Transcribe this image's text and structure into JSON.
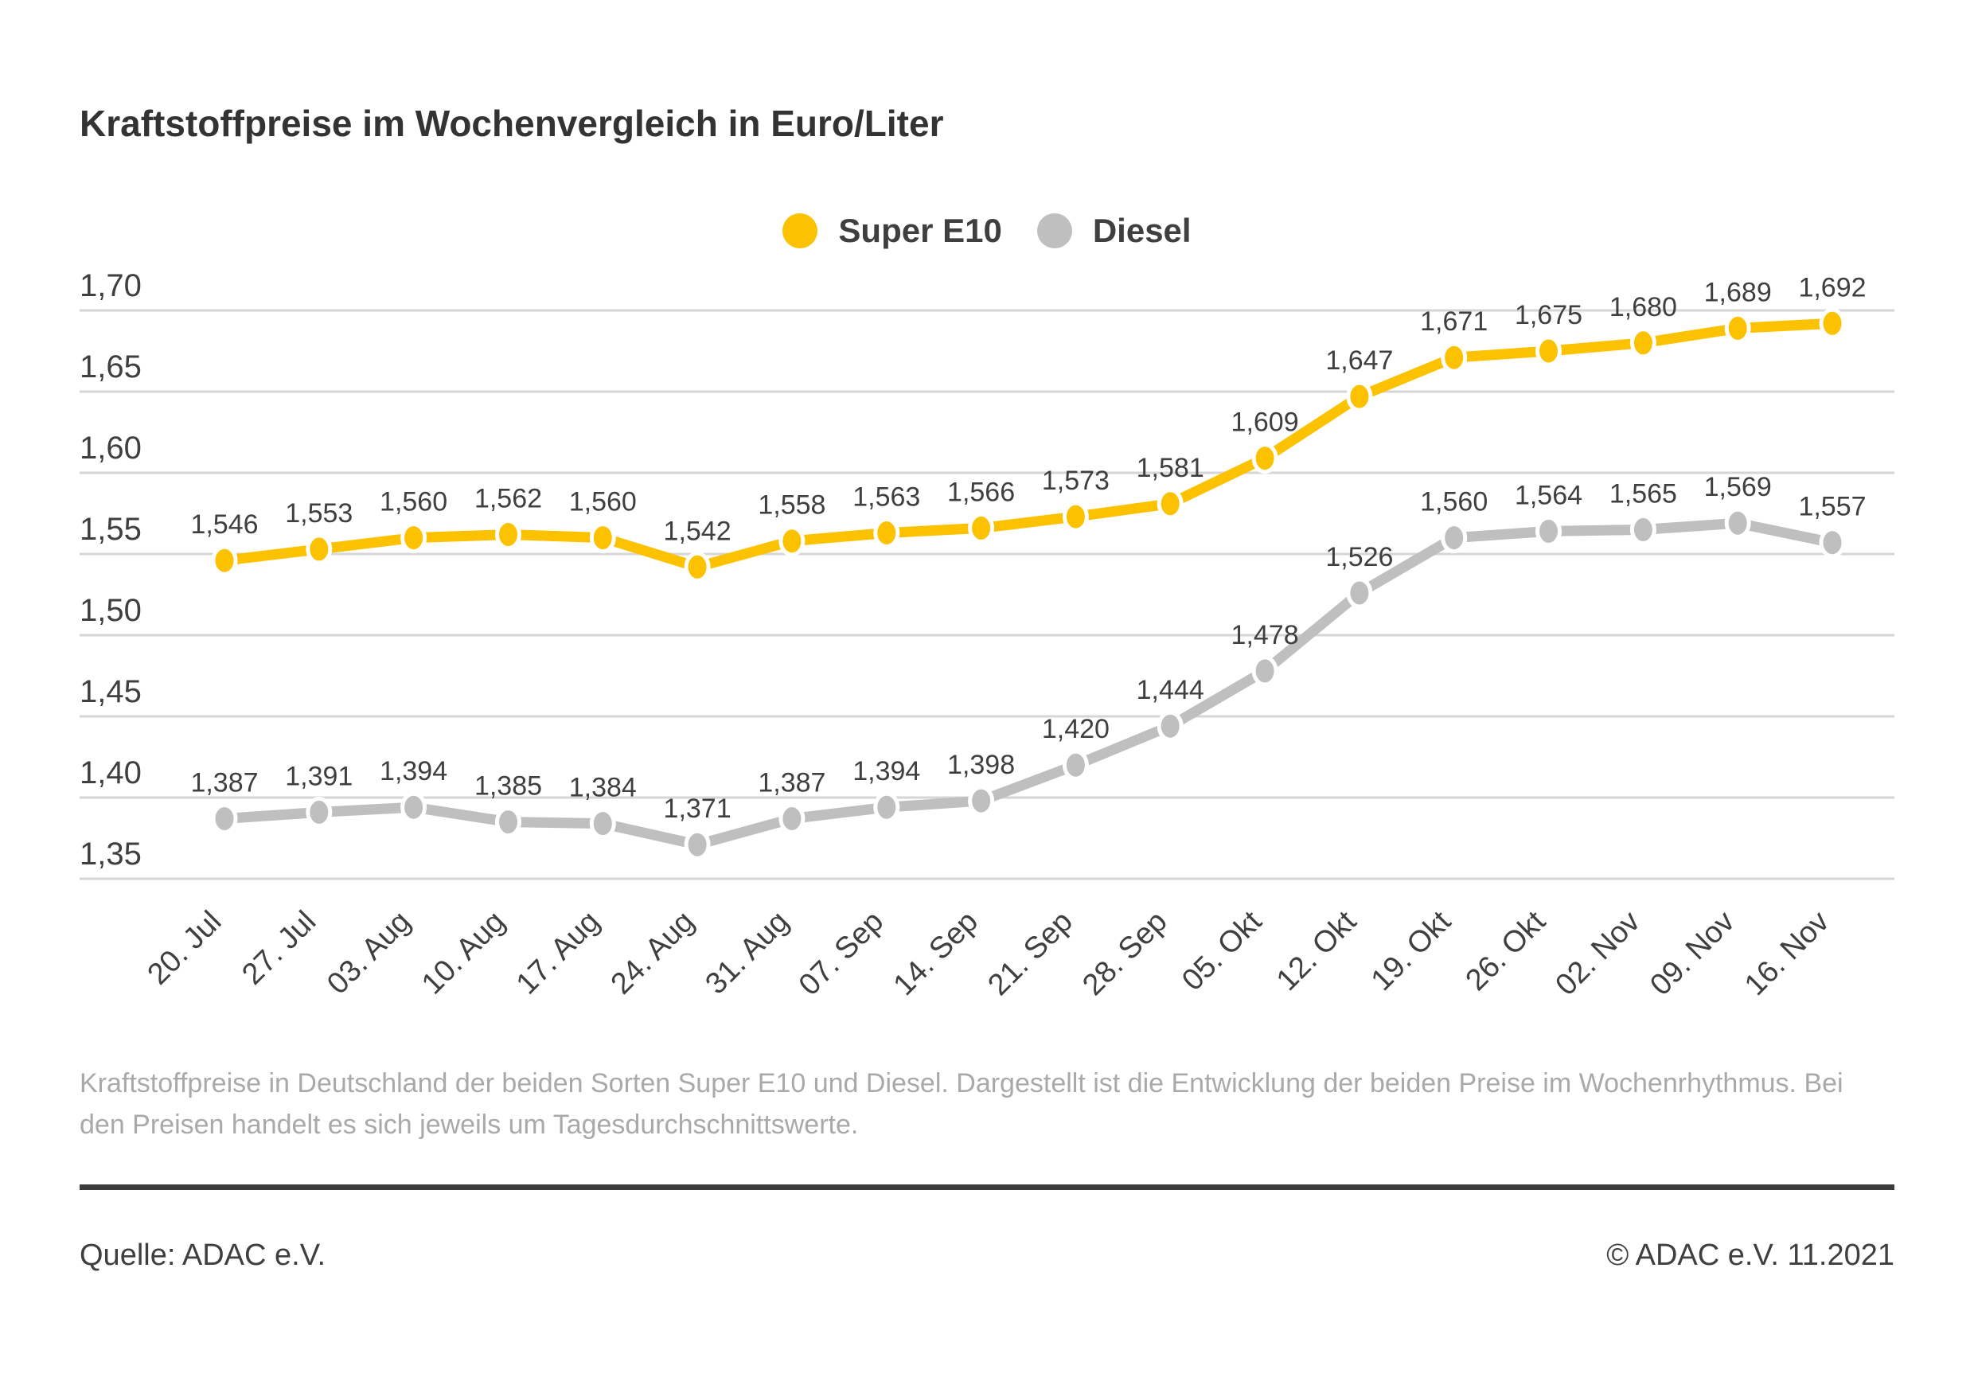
{
  "title": "Kraftstoffpreise im Wochenvergleich in Euro/Liter",
  "caption": "Kraftstoffpreise in Deutschland der beiden Sorten Super E10 und Diesel. Dargestellt ist die Entwicklung der beiden Preise im Wochenrhythmus. Bei den Preisen handelt es sich jeweils um Tagesdurchschnittswerte.",
  "footer": {
    "source": "Quelle: ADAC e.V.",
    "copyright": "© ADAC e.V. 11.2021"
  },
  "chart_data": {
    "type": "line",
    "title": "Kraftstoffpreise im Wochenvergleich in Euro/Liter",
    "xlabel": "",
    "ylabel": "Euro/Liter",
    "grid": true,
    "legend_position": "top",
    "ylim": [
      1.35,
      1.7
    ],
    "y_tick_step": 0.05,
    "y_tick_labels": [
      "1,70",
      "1,65",
      "1,60",
      "1,55",
      "1,50",
      "1,45",
      "1,40",
      "1,35"
    ],
    "categories": [
      "20. Jul",
      "27. Jul",
      "03. Aug",
      "10. Aug",
      "17. Aug",
      "24. Aug",
      "31. Aug",
      "07. Sep",
      "14. Sep",
      "21. Sep",
      "28. Sep",
      "05. Okt",
      "12. Okt",
      "19. Okt",
      "26. Okt",
      "02. Nov",
      "09. Nov",
      "16. Nov"
    ],
    "series": [
      {
        "name": "Super E10",
        "color": "#FCC200",
        "values": [
          1.546,
          1.553,
          1.56,
          1.562,
          1.56,
          1.542,
          1.558,
          1.563,
          1.566,
          1.573,
          1.581,
          1.609,
          1.647,
          1.671,
          1.675,
          1.68,
          1.689,
          1.692
        ],
        "value_labels": [
          "1,546",
          "1,553",
          "1,560",
          "1,562",
          "1,560",
          "1,542",
          "1,558",
          "1,563",
          "1,566",
          "1,573",
          "1,581",
          "1,609",
          "1,647",
          "1,671",
          "1,675",
          "1,680",
          "1,689",
          "1,692"
        ]
      },
      {
        "name": "Diesel",
        "color": "#BFBFBF",
        "values": [
          1.387,
          1.391,
          1.394,
          1.385,
          1.384,
          1.371,
          1.387,
          1.394,
          1.398,
          1.42,
          1.444,
          1.478,
          1.526,
          1.56,
          1.564,
          1.565,
          1.569,
          1.557
        ],
        "value_labels": [
          "1,387",
          "1,391",
          "1,394",
          "1,385",
          "1,384",
          "1,371",
          "1,387",
          "1,394",
          "1,398",
          "1,420",
          "1,444",
          "1,478",
          "1,526",
          "1,560",
          "1,564",
          "1,565",
          "1,569",
          "1,557"
        ]
      }
    ]
  }
}
